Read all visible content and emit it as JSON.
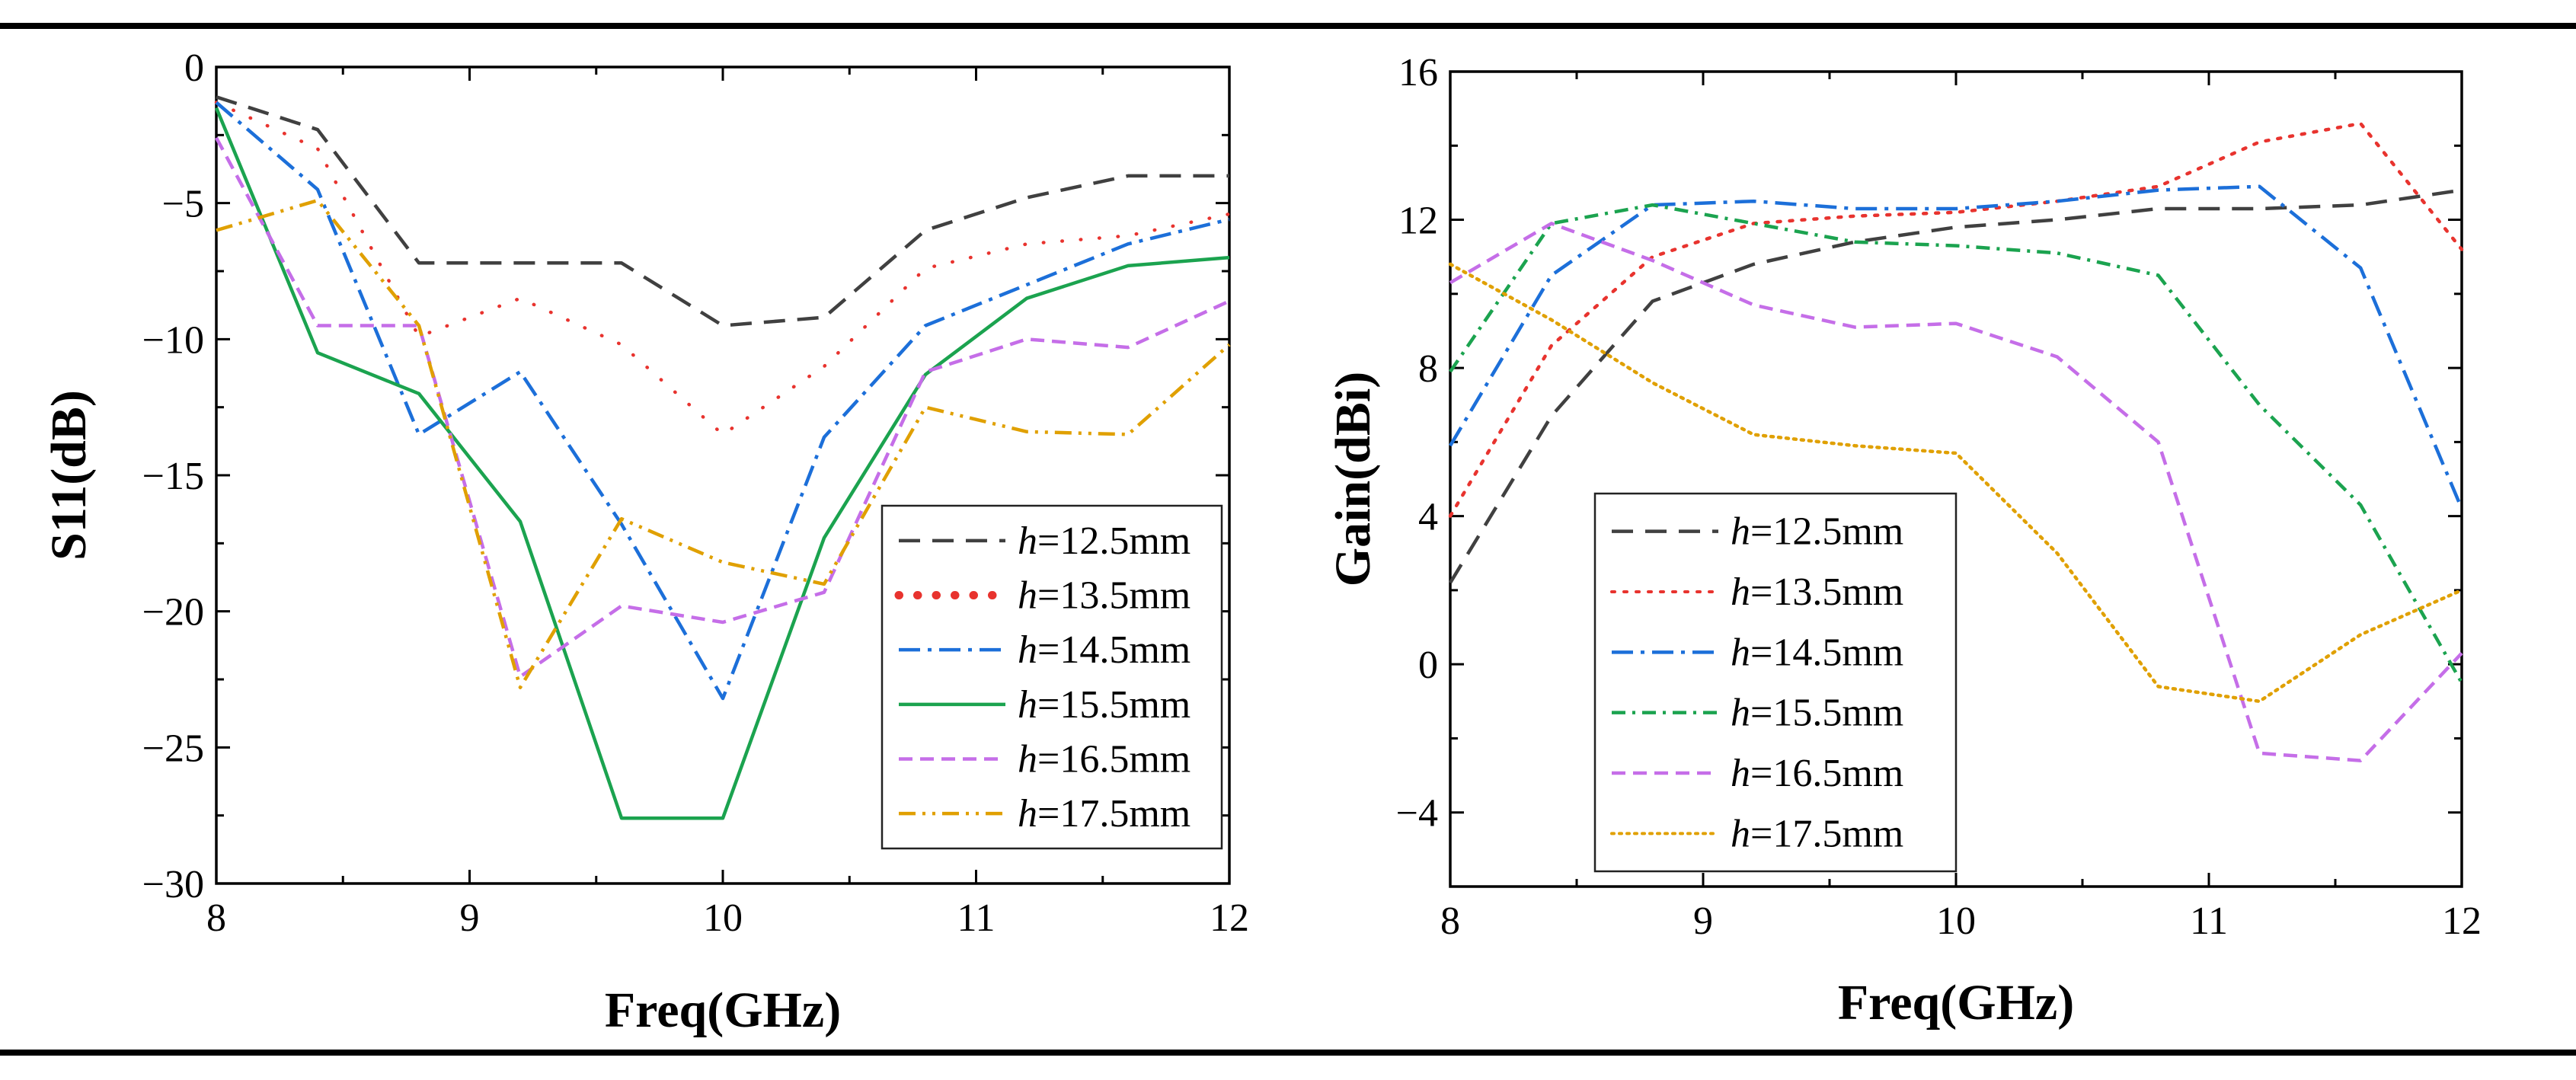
{
  "series_styles": [
    {
      "color": "#404040",
      "dash": "28,16",
      "width": 4.5,
      "cap": "butt"
    },
    {
      "color": "#e8332e",
      "dash": "0.5,24",
      "width": 11,
      "cap": "round"
    },
    {
      "color": "#1c6fd9",
      "dash": "28,10,5,10",
      "width": 4.5,
      "cap": "butt"
    },
    {
      "color": "#1ba34f",
      "dash": "",
      "width": 4.5,
      "cap": "butt"
    },
    {
      "color": "#c56ee8",
      "dash": "18,10",
      "width": 4.5,
      "cap": "butt"
    },
    {
      "color": "#e0a000",
      "dash": "22,9,4,9,4,9",
      "width": 4.5,
      "cap": "butt"
    }
  ],
  "gain_styles": [
    {
      "color": "#404040",
      "dash": "28,16",
      "width": 4.5,
      "cap": "butt"
    },
    {
      "color": "#e8332e",
      "dash": "4,12",
      "width": 4,
      "cap": "round"
    },
    {
      "color": "#1c6fd9",
      "dash": "28,10,5,10",
      "width": 4.5,
      "cap": "butt"
    },
    {
      "color": "#1ba34f",
      "dash": "18,9,4,9",
      "width": 4.5,
      "cap": "butt"
    },
    {
      "color": "#c56ee8",
      "dash": "18,10",
      "width": 4.5,
      "cap": "butt"
    },
    {
      "color": "#e0a000",
      "dash": "3,7",
      "width": 4,
      "cap": "round"
    }
  ],
  "chart_data": [
    {
      "type": "line",
      "id": "s11",
      "xlabel": "Freq(GHz)",
      "ylabel": "S11(dB)",
      "xlim": [
        8,
        12
      ],
      "ylim": [
        -30,
        0
      ],
      "xticks": [
        8,
        9,
        10,
        11,
        12
      ],
      "xtick_labels": [
        "8",
        "9",
        "10",
        "11",
        "12"
      ],
      "yticks": [
        0,
        -5,
        -10,
        -15,
        -20,
        -25,
        -30
      ],
      "ytick_labels": [
        "0",
        "−5",
        "−10",
        "−15",
        "−20",
        "−25",
        "−30"
      ],
      "legend_position": "bottom-right",
      "x": [
        8.0,
        8.4,
        8.8,
        9.2,
        9.6,
        10.0,
        10.4,
        10.8,
        11.2,
        11.6,
        12.0
      ],
      "series": [
        {
          "name": "h=12.5mm",
          "var": "h",
          "value_text": "=12.5mm",
          "values": [
            -1.1,
            -2.3,
            -7.2,
            -7.2,
            -7.2,
            -9.5,
            -9.2,
            -6.0,
            -4.8,
            -4.0,
            -4.0
          ]
        },
        {
          "name": "h=13.5mm",
          "var": "h",
          "value_text": "=13.5mm",
          "values": [
            -1.3,
            -3.0,
            -9.9,
            -8.5,
            -10.2,
            -13.5,
            -11.0,
            -7.4,
            -6.5,
            -6.2,
            -5.4
          ]
        },
        {
          "name": "h=14.5mm",
          "var": "h",
          "value_text": "=14.5mm",
          "values": [
            -1.3,
            -4.5,
            -13.5,
            -11.2,
            -16.8,
            -23.2,
            -13.6,
            -9.5,
            -8.0,
            -6.5,
            -5.6
          ]
        },
        {
          "name": "h=15.5mm",
          "var": "h",
          "value_text": "=15.5mm",
          "values": [
            -1.5,
            -10.5,
            -12.0,
            -16.7,
            -27.6,
            -27.6,
            -17.3,
            -11.3,
            -8.5,
            -7.3,
            -7.0
          ]
        },
        {
          "name": "h=16.5mm",
          "var": "h",
          "value_text": "=16.5mm",
          "values": [
            -2.6,
            -9.5,
            -9.5,
            -22.4,
            -19.8,
            -20.4,
            -19.3,
            -11.2,
            -10.0,
            -10.3,
            -8.6
          ]
        },
        {
          "name": "h=17.5mm",
          "var": "h",
          "value_text": "=17.5mm",
          "values": [
            -6.0,
            -4.9,
            -9.5,
            -22.8,
            -16.6,
            -18.2,
            -19.0,
            -12.5,
            -13.4,
            -13.5,
            -10.2
          ]
        }
      ]
    },
    {
      "type": "line",
      "id": "gain",
      "xlabel": "Freq(GHz)",
      "ylabel": "Gain(dBi)",
      "xlim": [
        8,
        12
      ],
      "ylim": [
        -6,
        16
      ],
      "xticks": [
        8,
        9,
        10,
        11,
        12
      ],
      "xtick_labels": [
        "8",
        "9",
        "10",
        "11",
        "12"
      ],
      "yticks": [
        16,
        12,
        8,
        4,
        0,
        -4
      ],
      "ytick_labels": [
        "16",
        "12",
        "8",
        "4",
        "0",
        "−4"
      ],
      "legend_position": "bottom-left",
      "x": [
        8.0,
        8.4,
        8.8,
        9.2,
        9.6,
        10.0,
        10.4,
        10.8,
        11.2,
        11.6,
        12.0
      ],
      "series": [
        {
          "name": "h=12.5mm",
          "var": "h",
          "value_text": "=12.5mm",
          "values": [
            2.2,
            6.7,
            9.8,
            10.8,
            11.4,
            11.8,
            12.0,
            12.3,
            12.3,
            12.4,
            12.8
          ]
        },
        {
          "name": "h=13.5mm",
          "var": "h",
          "value_text": "=13.5mm",
          "values": [
            4.0,
            8.6,
            11.0,
            11.9,
            12.1,
            12.2,
            12.5,
            12.9,
            14.1,
            14.6,
            11.2
          ]
        },
        {
          "name": "h=14.5mm",
          "var": "h",
          "value_text": "=14.5mm",
          "values": [
            5.9,
            10.5,
            12.4,
            12.5,
            12.3,
            12.3,
            12.5,
            12.8,
            12.9,
            10.7,
            4.2
          ]
        },
        {
          "name": "h=15.5mm",
          "var": "h",
          "value_text": "=15.5mm",
          "values": [
            7.9,
            11.9,
            12.4,
            11.9,
            11.4,
            11.3,
            11.1,
            10.5,
            7.0,
            4.3,
            -0.5
          ]
        },
        {
          "name": "h=16.5mm",
          "var": "h",
          "value_text": "=16.5mm",
          "values": [
            10.3,
            11.9,
            10.9,
            9.7,
            9.1,
            9.2,
            8.3,
            6.0,
            -2.4,
            -2.6,
            0.3
          ]
        },
        {
          "name": "h=17.5mm",
          "var": "h",
          "value_text": "=17.5mm",
          "values": [
            10.8,
            9.3,
            7.6,
            6.2,
            5.9,
            5.7,
            3.0,
            -0.6,
            -1.0,
            0.8,
            2.0
          ]
        }
      ]
    }
  ]
}
